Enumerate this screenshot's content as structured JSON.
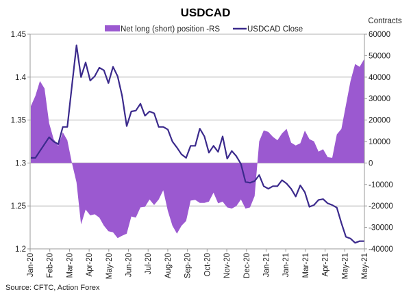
{
  "chart_data": {
    "type": "area+line",
    "title": "USDCAD",
    "y2label": "Contracts",
    "source": "Source: CFTC, Action Forex",
    "grid": "horizontal",
    "legend_placement": "top-center",
    "ylim": [
      1.2,
      1.45
    ],
    "yticks": [
      "1.2",
      "1.25",
      "1.3",
      "1.35",
      "1.4",
      "1.45"
    ],
    "y2lim": [
      -40000,
      60000
    ],
    "y2ticks": [
      "-40000",
      "-30000",
      "-20000",
      "-10000",
      "0",
      "10000",
      "20000",
      "30000",
      "40000",
      "50000",
      "60000"
    ],
    "xticks": [
      "Jan-20",
      "Feb-20",
      "Mar-20",
      "Apr-20",
      "May-20",
      "Jun-20",
      "Jul-20",
      "Aug-20",
      "Sep-20",
      "Oct-20",
      "Nov-20",
      "Dec-20",
      "Jan-21",
      "Jan-21",
      "Mar-21",
      "Apr-21",
      "May-21",
      "May-21"
    ],
    "series": [
      {
        "name": "Net long (short) position -RS",
        "type": "area",
        "axis": "right",
        "color": "#9b59d0",
        "values": [
          26500,
          31300,
          38200,
          34700,
          18600,
          11100,
          8000,
          14300,
          10600,
          0,
          -9000,
          -28600,
          -21700,
          -24400,
          -23900,
          -25400,
          -29200,
          -31800,
          -32300,
          -35000,
          -33900,
          -32900,
          -24900,
          -25400,
          -20700,
          -20400,
          -17000,
          -19600,
          -17000,
          -12700,
          -22300,
          -29200,
          -32900,
          -29200,
          -27000,
          -17500,
          -17200,
          -18600,
          -18600,
          -18000,
          -13800,
          -18800,
          -18000,
          -20700,
          -21200,
          -20100,
          -17000,
          -21200,
          -20700,
          -15400,
          10100,
          15200,
          14500,
          12200,
          10600,
          13800,
          15900,
          9500,
          8200,
          9200,
          15100,
          11100,
          10100,
          5300,
          6400,
          2700,
          2400,
          13300,
          15900,
          27000,
          38200,
          46100,
          44800,
          48400
        ]
      },
      {
        "name": "USDCAD Close",
        "type": "line",
        "axis": "left",
        "color": "#3b2a8c",
        "values": [
          1.306,
          1.306,
          1.314,
          1.322,
          1.33,
          1.325,
          1.322,
          1.342,
          1.342,
          1.39,
          1.437,
          1.4,
          1.417,
          1.396,
          1.401,
          1.411,
          1.408,
          1.393,
          1.412,
          1.401,
          1.378,
          1.343,
          1.36,
          1.361,
          1.369,
          1.355,
          1.36,
          1.358,
          1.342,
          1.342,
          1.339,
          1.325,
          1.318,
          1.31,
          1.306,
          1.32,
          1.32,
          1.34,
          1.331,
          1.312,
          1.32,
          1.313,
          1.331,
          1.305,
          1.314,
          1.308,
          1.299,
          1.278,
          1.277,
          1.279,
          1.286,
          1.273,
          1.27,
          1.273,
          1.273,
          1.28,
          1.276,
          1.27,
          1.261,
          1.274,
          1.266,
          1.249,
          1.251,
          1.257,
          1.258,
          1.253,
          1.251,
          1.248,
          1.23,
          1.214,
          1.212,
          1.207,
          1.209,
          1.209
        ]
      }
    ]
  }
}
